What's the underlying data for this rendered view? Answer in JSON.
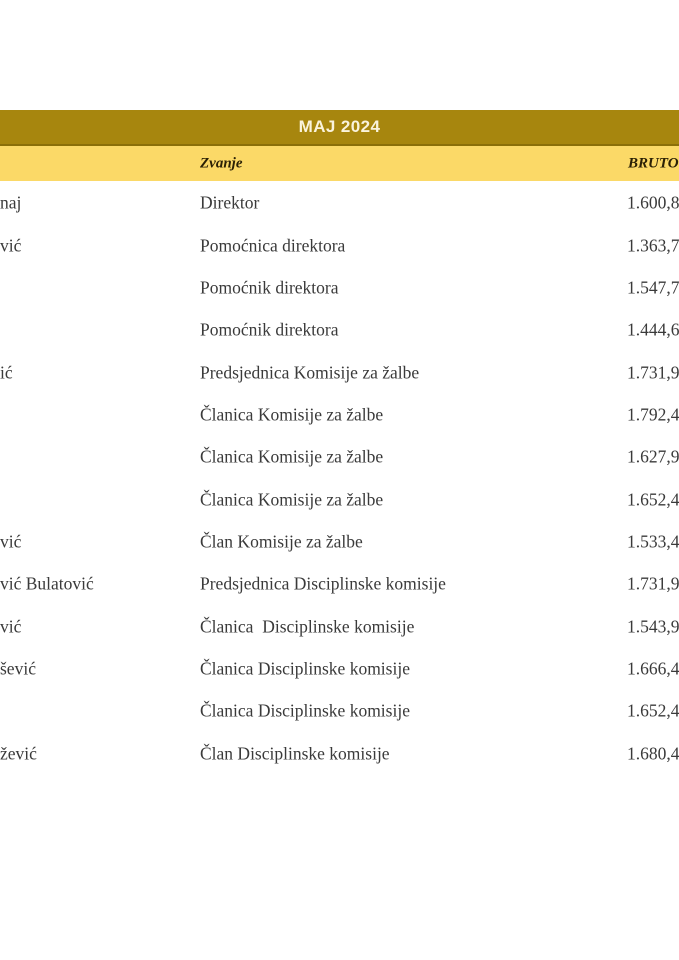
{
  "table": {
    "title": "MAJ 2024",
    "columns": {
      "zvanje": "Zvanje",
      "bruto": "BRUTO"
    },
    "colors": {
      "title_bg": "#A7860E",
      "title_border": "#8B6F08",
      "title_text": "#FAF3DC",
      "subheader_bg": "#FBD967",
      "subheader_text": "#2B2105",
      "body_text": "#3A3A3A"
    },
    "rows": [
      {
        "name": "naj",
        "title": "Direktor",
        "bruto": "1.600,8"
      },
      {
        "name": "vić",
        "title": "Pomoćnica direktora",
        "bruto": "1.363,7"
      },
      {
        "name": "",
        "title": "Pomoćnik direktora",
        "bruto": "1.547,7"
      },
      {
        "name": "",
        "title": "Pomoćnik direktora",
        "bruto": "1.444,6"
      },
      {
        "name": "ić",
        "title": "Predsjednica Komisije za žalbe",
        "bruto": "1.731,9"
      },
      {
        "name": "",
        "title": "Članica Komisije za žalbe",
        "bruto": "1.792,4"
      },
      {
        "name": "",
        "title": "Članica Komisije za žalbe",
        "bruto": "1.627,9"
      },
      {
        "name": "",
        "title": "Članica Komisije za žalbe",
        "bruto": "1.652,4"
      },
      {
        "name": "vić",
        "title": "Član Komisije za žalbe",
        "bruto": "1.533,4"
      },
      {
        "name": "vić Bulatović",
        "title": "Predsjednica Disciplinske komisije",
        "bruto": "1.731,9"
      },
      {
        "name": "vić",
        "title": "Članica  Disciplinske komisije",
        "bruto": "1.543,9"
      },
      {
        "name": "šević",
        "title": "Članica Disciplinske komisije",
        "bruto": "1.666,4"
      },
      {
        "name": "",
        "title": "Članica Disciplinske komisije",
        "bruto": "1.652,4"
      },
      {
        "name": "žević",
        "title": "Član Disciplinske komisije",
        "bruto": "1.680,4"
      }
    ]
  }
}
